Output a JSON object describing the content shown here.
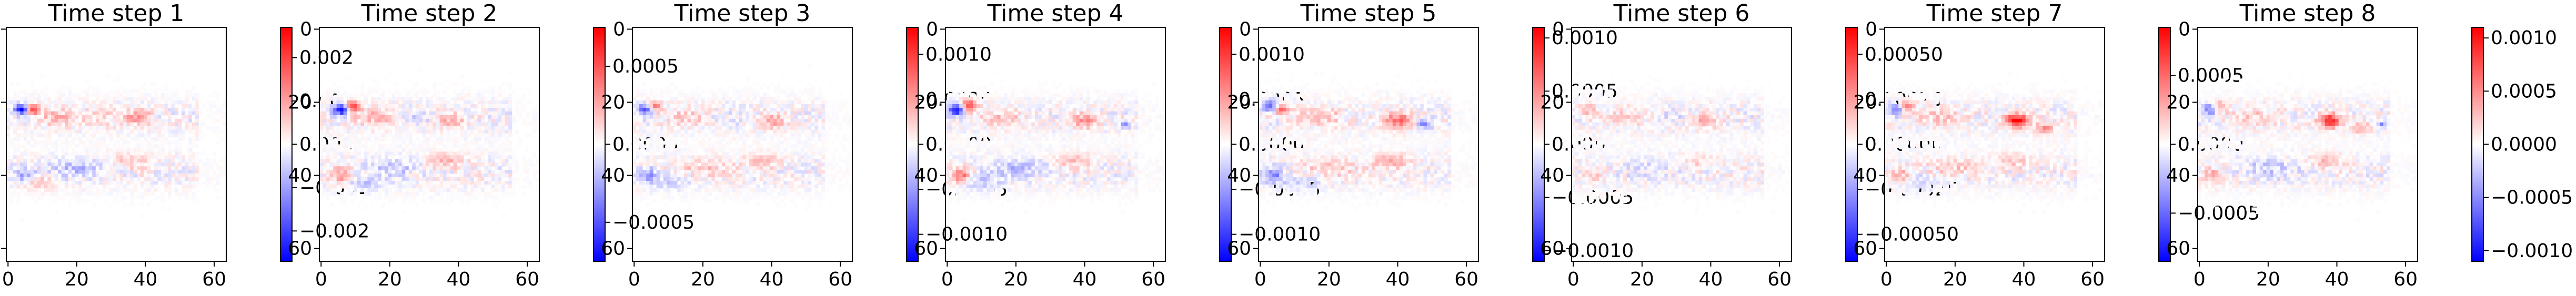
{
  "chart_data": {
    "type": "heatmap",
    "colormap": "bwr",
    "colors": {
      "negative": "#0000ff",
      "zero": "#ffffff",
      "positive": "#ff0000"
    },
    "xlim": [
      0,
      63
    ],
    "ylim": [
      63,
      0
    ],
    "xticks": [
      "0",
      "20",
      "40",
      "60"
    ],
    "yticks": [
      "0",
      "20",
      "40",
      "60"
    ],
    "panels": [
      {
        "title": "Time step 1",
        "vrange": [
          -0.0027,
          0.0027
        ],
        "colorbar_ticks": [
          {
            "value": 0.002,
            "label": "0.002"
          },
          {
            "value": 0.001,
            "label": "0.001"
          },
          {
            "value": 0.0,
            "label": "0.000"
          },
          {
            "value": -0.001,
            "label": "−0.001"
          },
          {
            "value": -0.002,
            "label": "−0.002"
          }
        ],
        "blobs": [
          {
            "x": 4,
            "y": 22,
            "rx": 2.2,
            "ry": 1.3,
            "v": -1.0
          },
          {
            "x": 7,
            "y": 22,
            "rx": 2.0,
            "ry": 1.3,
            "v": 0.9
          },
          {
            "x": 14,
            "y": 24,
            "rx": 6,
            "ry": 2.5,
            "v": 0.25
          },
          {
            "x": 38,
            "y": 24,
            "rx": 4,
            "ry": 2,
            "v": 0.35
          },
          {
            "x": 28,
            "y": 24,
            "rx": 6,
            "ry": 2.5,
            "v": 0.15
          },
          {
            "x": 5,
            "y": 40,
            "rx": 3,
            "ry": 2,
            "v": -0.4
          },
          {
            "x": 20,
            "y": 38,
            "rx": 8,
            "ry": 2.5,
            "v": -0.25
          },
          {
            "x": 35,
            "y": 36,
            "rx": 6,
            "ry": 2,
            "v": 0.2
          },
          {
            "x": 8,
            "y": 42,
            "rx": 5,
            "ry": 2,
            "v": 0.2
          }
        ]
      },
      {
        "title": "Time step 2",
        "vrange": [
          -0.00075,
          0.00075
        ],
        "colorbar_ticks": [
          {
            "value": 0.0005,
            "label": "0.0005"
          },
          {
            "value": 0.0,
            "label": "0.0000"
          },
          {
            "value": -0.0005,
            "label": "−0.0005"
          }
        ],
        "blobs": [
          {
            "x": 6,
            "y": 22,
            "rx": 2.4,
            "ry": 1.5,
            "v": -1.0
          },
          {
            "x": 9,
            "y": 21,
            "rx": 2.2,
            "ry": 1.5,
            "v": 0.8
          },
          {
            "x": 16,
            "y": 24,
            "rx": 7,
            "ry": 2.5,
            "v": 0.25
          },
          {
            "x": 38,
            "y": 25,
            "rx": 4,
            "ry": 2,
            "v": 0.3
          },
          {
            "x": 27,
            "y": 24,
            "rx": 6,
            "ry": 2,
            "v": -0.12
          },
          {
            "x": 6,
            "y": 40,
            "rx": 3,
            "ry": 2,
            "v": 0.45
          },
          {
            "x": 22,
            "y": 38,
            "rx": 8,
            "ry": 2.5,
            "v": -0.2
          },
          {
            "x": 36,
            "y": 36,
            "rx": 5,
            "ry": 2,
            "v": 0.3
          },
          {
            "x": 12,
            "y": 42,
            "rx": 6,
            "ry": 2,
            "v": -0.2
          }
        ]
      },
      {
        "title": "Time step 3",
        "vrange": [
          -0.0013,
          0.0013
        ],
        "colorbar_ticks": [
          {
            "value": 0.001,
            "label": "0.0010"
          },
          {
            "value": 0.0005,
            "label": "0.0005"
          },
          {
            "value": 0.0,
            "label": "0.0000"
          },
          {
            "value": -0.0005,
            "label": "−0.0005"
          },
          {
            "value": -0.001,
            "label": "−0.0010"
          }
        ],
        "blobs": [
          {
            "x": 3,
            "y": 22,
            "rx": 2.2,
            "ry": 1.5,
            "v": -0.7
          },
          {
            "x": 6,
            "y": 21,
            "rx": 2.0,
            "ry": 1.5,
            "v": 0.5
          },
          {
            "x": 16,
            "y": 24,
            "rx": 7,
            "ry": 2.5,
            "v": 0.18
          },
          {
            "x": 40,
            "y": 25,
            "rx": 4,
            "ry": 2,
            "v": 0.35
          },
          {
            "x": 28,
            "y": 24,
            "rx": 6,
            "ry": 2,
            "v": -0.1
          },
          {
            "x": 4,
            "y": 40,
            "rx": 3,
            "ry": 2,
            "v": -0.35
          },
          {
            "x": 20,
            "y": 38,
            "rx": 8,
            "ry": 2.5,
            "v": 0.18
          },
          {
            "x": 37,
            "y": 36,
            "rx": 5,
            "ry": 2,
            "v": 0.25
          },
          {
            "x": 10,
            "y": 42,
            "rx": 6,
            "ry": 2,
            "v": -0.15
          }
        ]
      },
      {
        "title": "Time step 4",
        "vrange": [
          -0.0013,
          0.0013
        ],
        "colorbar_ticks": [
          {
            "value": 0.001,
            "label": "0.0010"
          },
          {
            "value": 0.0005,
            "label": "0.0005"
          },
          {
            "value": 0.0,
            "label": "0.0000"
          },
          {
            "value": -0.0005,
            "label": "−0.0005"
          },
          {
            "value": -0.001,
            "label": "−0.0010"
          }
        ],
        "blobs": [
          {
            "x": 3,
            "y": 22,
            "rx": 2.4,
            "ry": 1.6,
            "v": -1.0
          },
          {
            "x": 6,
            "y": 21,
            "rx": 2.2,
            "ry": 1.6,
            "v": 0.85
          },
          {
            "x": 16,
            "y": 24,
            "rx": 7,
            "ry": 2.5,
            "v": 0.2
          },
          {
            "x": 40,
            "y": 25,
            "rx": 4,
            "ry": 2,
            "v": 0.4
          },
          {
            "x": 52,
            "y": 26,
            "rx": 1.5,
            "ry": 1,
            "v": -0.5
          },
          {
            "x": 4,
            "y": 40,
            "rx": 3,
            "ry": 2,
            "v": 0.55
          },
          {
            "x": 20,
            "y": 38,
            "rx": 8,
            "ry": 2.5,
            "v": -0.25
          },
          {
            "x": 37,
            "y": 36,
            "rx": 5,
            "ry": 2,
            "v": 0.25
          },
          {
            "x": 10,
            "y": 42,
            "rx": 6,
            "ry": 2,
            "v": -0.2
          }
        ]
      },
      {
        "title": "Time step 5",
        "vrange": [
          -0.0011,
          0.0011
        ],
        "colorbar_ticks": [
          {
            "value": 0.001,
            "label": "0.0010"
          },
          {
            "value": 0.0005,
            "label": "0.0005"
          },
          {
            "value": 0.0,
            "label": "0.0000"
          },
          {
            "value": -0.0005,
            "label": "−0.0005"
          },
          {
            "value": -0.001,
            "label": "−0.0010"
          }
        ],
        "blobs": [
          {
            "x": 3,
            "y": 21,
            "rx": 2.0,
            "ry": 1.5,
            "v": -0.7
          },
          {
            "x": 6,
            "y": 22,
            "rx": 2.0,
            "ry": 1.5,
            "v": 0.55
          },
          {
            "x": 18,
            "y": 24,
            "rx": 7,
            "ry": 2.5,
            "v": 0.2
          },
          {
            "x": 40,
            "y": 25,
            "rx": 4,
            "ry": 2,
            "v": 0.6
          },
          {
            "x": 48,
            "y": 26,
            "rx": 2,
            "ry": 1.2,
            "v": -0.5
          },
          {
            "x": 4,
            "y": 40,
            "rx": 3,
            "ry": 2,
            "v": -0.45
          },
          {
            "x": 20,
            "y": 38,
            "rx": 8,
            "ry": 2.5,
            "v": 0.2
          },
          {
            "x": 38,
            "y": 36,
            "rx": 5,
            "ry": 2,
            "v": 0.35
          },
          {
            "x": 12,
            "y": 42,
            "rx": 6,
            "ry": 2,
            "v": -0.15
          }
        ]
      },
      {
        "title": "Time step 6",
        "vrange": [
          -0.00065,
          0.00065
        ],
        "colorbar_ticks": [
          {
            "value": 0.0005,
            "label": "0.00050"
          },
          {
            "value": 0.00025,
            "label": "0.00025"
          },
          {
            "value": 0.0,
            "label": "0.00000"
          },
          {
            "value": -0.00025,
            "label": "−0.00025"
          },
          {
            "value": -0.0005,
            "label": "−0.00050"
          }
        ],
        "blobs": [
          {
            "x": 4,
            "y": 22,
            "rx": 2.2,
            "ry": 1.5,
            "v": 0.3
          },
          {
            "x": 16,
            "y": 24,
            "rx": 7,
            "ry": 2.5,
            "v": 0.15
          },
          {
            "x": 38,
            "y": 25,
            "rx": 4,
            "ry": 2,
            "v": 0.3
          },
          {
            "x": 28,
            "y": 24,
            "rx": 6,
            "ry": 2,
            "v": -0.08
          },
          {
            "x": 6,
            "y": 40,
            "rx": 3,
            "ry": 2,
            "v": 0.2
          },
          {
            "x": 22,
            "y": 38,
            "rx": 8,
            "ry": 2.5,
            "v": -0.12
          },
          {
            "x": 36,
            "y": 36,
            "rx": 5,
            "ry": 2,
            "v": 0.15
          }
        ]
      },
      {
        "title": "Time step 7",
        "vrange": [
          -0.00085,
          0.00085
        ],
        "colorbar_ticks": [
          {
            "value": 0.0005,
            "label": "0.0005"
          },
          {
            "value": 0.0,
            "label": "0.0000"
          },
          {
            "value": -0.0005,
            "label": "−0.0005"
          }
        ],
        "blobs": [
          {
            "x": 3,
            "y": 22,
            "rx": 2.2,
            "ry": 1.5,
            "v": -0.5
          },
          {
            "x": 6,
            "y": 21,
            "rx": 2.0,
            "ry": 1.5,
            "v": 0.45
          },
          {
            "x": 16,
            "y": 24,
            "rx": 7,
            "ry": 2.5,
            "v": 0.2
          },
          {
            "x": 38,
            "y": 25,
            "rx": 3,
            "ry": 1.8,
            "v": 1.0
          },
          {
            "x": 46,
            "y": 27,
            "rx": 3,
            "ry": 1.5,
            "v": 0.4
          },
          {
            "x": 4,
            "y": 40,
            "rx": 3,
            "ry": 2,
            "v": 0.3
          },
          {
            "x": 20,
            "y": 38,
            "rx": 8,
            "ry": 2.5,
            "v": 0.18
          },
          {
            "x": 37,
            "y": 36,
            "rx": 5,
            "ry": 2,
            "v": 0.2
          },
          {
            "x": 10,
            "y": 42,
            "rx": 6,
            "ry": 2,
            "v": -0.15
          }
        ]
      },
      {
        "title": "Time step 8",
        "vrange": [
          -0.0011,
          0.0011
        ],
        "colorbar_ticks": [
          {
            "value": 0.001,
            "label": "0.0010"
          },
          {
            "value": 0.0005,
            "label": "0.0005"
          },
          {
            "value": 0.0,
            "label": "0.0000"
          },
          {
            "value": -0.0005,
            "label": "−0.0005"
          },
          {
            "value": -0.001,
            "label": "−0.0010"
          }
        ],
        "blobs": [
          {
            "x": 3,
            "y": 22,
            "rx": 2.2,
            "ry": 1.5,
            "v": -0.5
          },
          {
            "x": 6,
            "y": 21,
            "rx": 2.0,
            "ry": 1.5,
            "v": 0.4
          },
          {
            "x": 16,
            "y": 24,
            "rx": 7,
            "ry": 2.5,
            "v": 0.18
          },
          {
            "x": 38,
            "y": 25,
            "rx": 3,
            "ry": 1.8,
            "v": 0.9
          },
          {
            "x": 47,
            "y": 27,
            "rx": 3,
            "ry": 1.5,
            "v": 0.35
          },
          {
            "x": 53,
            "y": 26,
            "rx": 1.5,
            "ry": 1,
            "v": -0.45
          },
          {
            "x": 4,
            "y": 40,
            "rx": 3,
            "ry": 2,
            "v": 0.3
          },
          {
            "x": 20,
            "y": 38,
            "rx": 8,
            "ry": 2.5,
            "v": -0.2
          },
          {
            "x": 37,
            "y": 36,
            "rx": 5,
            "ry": 2,
            "v": 0.25
          }
        ]
      }
    ]
  }
}
